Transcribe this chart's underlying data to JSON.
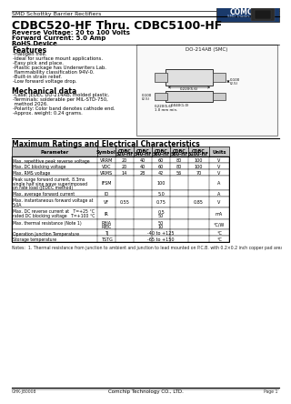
{
  "title_line1": "SMD Schottky Barrier Rectifiers",
  "title_line2": "CDBC520-HF Thru. CDBC5100-HF",
  "subtitle1": "Reverse Voltage: 20 to 100 Volts",
  "subtitle2": "Forward Current: 5.0 Amp",
  "subtitle3": "RoHS Device",
  "features_title": "Features",
  "features": [
    "-Halogen free.",
    "-Ideal for surface mount applications.",
    "-Easy pick and place.",
    "-Plastic package has Underwriters Lab.",
    " flammability classification 94V-0.",
    "-Built-in strain relief.",
    "-Low forward voltage drop."
  ],
  "mech_title": "Mechanical data",
  "mech": [
    "-Case: JEDEC DO-214AB, molded plastic.",
    "-Terminals: solderable per MIL-STD-750,",
    " method 2026.",
    "-Polarity: Color band denotes cathode end.",
    "-Approx. weight: 0.24 grams."
  ],
  "table_title": "Maximum Ratings and Electrical Characteristics",
  "table_headers": [
    "Parameter",
    "Symbol",
    "CDBC\n520-HF",
    "CDBC\n540-HF",
    "CDBC\n560-HF",
    "CDBC\n580-HF",
    "CDBC\n5100-HF",
    "Units"
  ],
  "table_rows": [
    [
      "Max. repetitive peak reverse voltage",
      "VRRM",
      "20",
      "40",
      "60",
      "80",
      "100",
      "V"
    ],
    [
      "Max. DC blocking voltage",
      "VDC",
      "20",
      "40",
      "60",
      "80",
      "100",
      "V"
    ],
    [
      "Max. RMS voltage",
      "VRMS",
      "14",
      "28",
      "42",
      "56",
      "70",
      "V"
    ],
    [
      "Peak surge forward current, 8.3ms\nsingle half sine wave superimposed\non rate load (JEDEC method)",
      "IFSM",
      "",
      "",
      "100",
      "",
      "",
      "A"
    ],
    [
      "Max. average forward current",
      "IO",
      "",
      "",
      "5.0",
      "",
      "",
      "A"
    ],
    [
      "Max. instantaneous forward voltage at\n5.0A",
      "VF",
      "0.55",
      "",
      "0.75",
      "",
      "0.85",
      "V"
    ],
    [
      "Max. DC reverse current at   T=+25 °C\nrated DC blocking voltage   T=+100 °C",
      "IR",
      "",
      "",
      "0.5\n50",
      "",
      "",
      "mA"
    ],
    [
      "Max. thermal resistance (Note 1)",
      "RθJA\nRθJC",
      "",
      "",
      "50\n10",
      "",
      "",
      "°C/W"
    ],
    [
      "Operation Junction Temperature",
      "TJ",
      "",
      "",
      "-40 to +125",
      "",
      "",
      "°C"
    ],
    [
      "Storage temperature",
      "TSTG",
      "",
      "",
      "-65 to +150",
      "",
      "",
      "°C"
    ]
  ],
  "note": "Notes:  1. Thermal resistance from junction to ambient and junction to lead mounted on P.C.B. with 0.2×0.2 inch copper pad area.",
  "footer_left": "GHK-J80008",
  "footer_center": "Comchip Technology CO., LTD.",
  "footer_right": "Page 1",
  "logo_text": "COMCHIP",
  "logo_sub": "SMD Diodes Specialist",
  "diag_title": "DO-214AB (SMC)",
  "bg_color": "#ffffff",
  "table_header_bg": "#c8c8c8",
  "logo_bg": "#1a3a6b"
}
